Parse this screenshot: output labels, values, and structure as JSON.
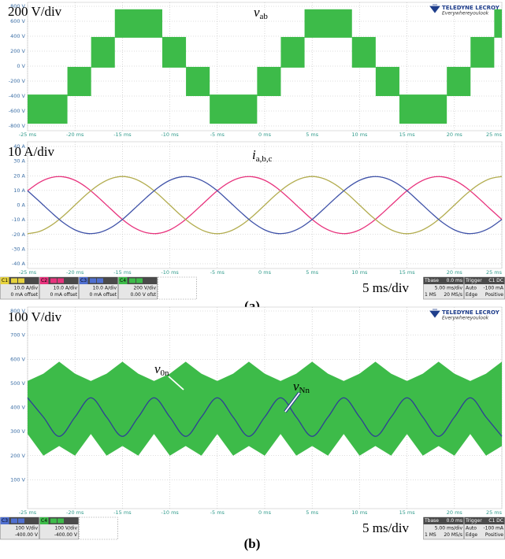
{
  "chart_data": [
    {
      "type": "band",
      "annotations": [
        {
          "text": "200 V/div"
        },
        {
          "text": "v",
          "sub": "ab"
        }
      ],
      "logo": {
        "brand": "TELEDYNE LECROY",
        "tagline": "Everywhereyoulook"
      },
      "xlim": [
        -25,
        25
      ],
      "xticks": [
        {
          "value": -25,
          "label": "-25 ms"
        },
        {
          "value": -20,
          "label": "-20 ms"
        },
        {
          "value": -15,
          "label": "-15 ms"
        },
        {
          "value": -10,
          "label": "-10 ms"
        },
        {
          "value": -5,
          "label": "-5 ms"
        },
        {
          "value": 0,
          "label": "0 ms"
        },
        {
          "value": 5,
          "label": "5 ms"
        },
        {
          "value": 10,
          "label": "10 ms"
        },
        {
          "value": 15,
          "label": "15 ms"
        },
        {
          "value": 20,
          "label": "20 ms"
        },
        {
          "value": 25,
          "label": "25 ms"
        }
      ],
      "ylim": [
        -800,
        800
      ],
      "yticks": [
        {
          "value": 800,
          "label": "800 V"
        },
        {
          "value": 600,
          "label": "600 V"
        },
        {
          "value": 400,
          "label": "400 V"
        },
        {
          "value": 200,
          "label": "200 V"
        },
        {
          "value": 0,
          "label": "0 V"
        },
        {
          "value": -200,
          "label": "-200 V"
        },
        {
          "value": -400,
          "label": "-400 V"
        },
        {
          "value": -600,
          "label": "-600 V"
        },
        {
          "value": -800,
          "label": "-800 V"
        }
      ],
      "grid": true,
      "series": [
        {
          "color": "#3dbb49",
          "x_start": [
            -25,
            -20.8,
            -18.3,
            -15.8,
            -10.8,
            -8.3,
            -5.8,
            -0.8,
            1.7,
            4.2,
            9.2,
            11.7,
            14.2,
            19.2,
            21.7,
            24.2
          ],
          "x_end": [
            -20.8,
            -18.3,
            -15.8,
            -10.8,
            -8.3,
            -5.8,
            -0.8,
            1.7,
            4.2,
            9.2,
            11.7,
            14.2,
            19.2,
            21.7,
            24.2,
            25
          ],
          "low": [
            -770,
            -400,
            -20,
            380,
            -20,
            -400,
            -770,
            -400,
            -20,
            380,
            -20,
            -400,
            -770,
            -400,
            -20,
            380
          ],
          "high": [
            -380,
            -10,
            390,
            760,
            390,
            -10,
            -380,
            -10,
            390,
            760,
            390,
            -10,
            -380,
            -10,
            390,
            760
          ]
        }
      ]
    },
    {
      "type": "line",
      "annotations": [
        {
          "text": "10 A/div"
        },
        {
          "text": "i",
          "sub": "a,b,c"
        }
      ],
      "xlim": [
        -25,
        25
      ],
      "xticks": [
        {
          "value": -25,
          "label": "-25 ms"
        },
        {
          "value": -20,
          "label": "-20 ms"
        },
        {
          "value": -15,
          "label": "-15 ms"
        },
        {
          "value": -10,
          "label": "-10 ms"
        },
        {
          "value": -5,
          "label": "-5 ms"
        },
        {
          "value": 0,
          "label": "0 ms"
        },
        {
          "value": 5,
          "label": "5 ms"
        },
        {
          "value": 10,
          "label": "10 ms"
        },
        {
          "value": 15,
          "label": "15 ms"
        },
        {
          "value": 20,
          "label": "20 ms"
        },
        {
          "value": 25,
          "label": "25 ms"
        }
      ],
      "ylim": [
        -40,
        40
      ],
      "yticks": [
        {
          "value": 40,
          "label": "40 A"
        },
        {
          "value": 30,
          "label": "30 A"
        },
        {
          "value": 20,
          "label": "20 A"
        },
        {
          "value": 10,
          "label": "10 A"
        },
        {
          "value": 0,
          "label": "0 A"
        },
        {
          "value": -10,
          "label": "-10 A"
        },
        {
          "value": -20,
          "label": "-20 A"
        },
        {
          "value": -30,
          "label": "-30 A"
        },
        {
          "value": -40,
          "label": "-40 A"
        }
      ],
      "grid": true,
      "x": [
        -25,
        -23.75,
        -22.5,
        -21.25,
        -20,
        -18.75,
        -17.5,
        -16.25,
        -15,
        -13.75,
        -12.5,
        -11.25,
        -10,
        -8.75,
        -7.5,
        -6.25,
        -5,
        -3.75,
        -2.5,
        -1.25,
        0,
        1.25,
        2.5,
        3.75,
        5,
        6.25,
        7.5,
        8.75,
        10,
        11.25,
        12.5,
        13.75,
        15,
        16.25,
        17.5,
        18.75,
        20,
        21.25,
        22.5,
        23.75,
        25
      ],
      "series": [
        {
          "color": "#e8337d",
          "values": [
            9.8,
            15.5,
            18.8,
            19.3,
            16.9,
            11.9,
            5.0,
            -2.5,
            -9.8,
            -15.5,
            -18.8,
            -19.3,
            -16.9,
            -11.9,
            -5.0,
            2.5,
            9.8,
            15.5,
            18.8,
            19.3,
            16.9,
            11.9,
            5.0,
            -2.5,
            -9.8,
            -15.5,
            -18.8,
            -19.3,
            -16.9,
            -11.9,
            -5.0,
            2.5,
            9.8,
            15.5,
            18.8,
            19.3,
            16.9,
            11.9,
            5.0,
            -2.5,
            -9.8
          ]
        },
        {
          "color": "#b3ad50",
          "values": [
            -19.5,
            -18,
            -13.8,
            -7.5,
            0,
            7.5,
            13.8,
            18,
            19.5,
            18,
            13.8,
            7.5,
            0,
            -7.5,
            -13.8,
            -18,
            -19.5,
            -18,
            -13.8,
            -7.5,
            0,
            7.5,
            13.8,
            18,
            19.5,
            18,
            13.8,
            7.5,
            0,
            -7.5,
            -13.8,
            -18,
            -19.5,
            -18,
            -13.8,
            -7.5,
            0,
            7.5,
            13.8,
            18,
            19.5
          ]
        },
        {
          "color": "#3f52a8",
          "values": [
            9.8,
            2.5,
            -5.0,
            -11.9,
            -16.9,
            -19.3,
            -18.8,
            -15.5,
            -9.8,
            -2.5,
            5.0,
            11.9,
            16.9,
            19.3,
            18.8,
            15.5,
            9.8,
            2.5,
            -5.0,
            -11.9,
            -16.9,
            -19.3,
            -18.8,
            -15.5,
            -9.8,
            -2.5,
            5.0,
            11.9,
            16.9,
            19.3,
            18.8,
            15.5,
            9.8,
            2.5,
            -5.0,
            -11.9,
            -16.9,
            -19.3,
            -18.8,
            -15.5,
            -9.8
          ]
        }
      ],
      "status": [
        {
          "label": "C1",
          "color": "#e6d23c",
          "lines": [
            "10.0 A/div",
            "0 mA offset"
          ]
        },
        {
          "label": "C2",
          "color": "#e8337d",
          "lines": [
            "10.0 A/div",
            "0 mA offset"
          ]
        },
        {
          "label": "C3",
          "color": "#4f6fd0",
          "lines": [
            "10.0 A/div",
            "0 mA offset"
          ]
        },
        {
          "label": "C4",
          "color": "#3dbb49",
          "lines": [
            "200 V/div",
            "0.00 V ofst"
          ]
        }
      ],
      "timebase": {
        "label": "Tbase",
        "head": "0.0 ms",
        "rows": [
          [
            "5.00 ms/div"
          ],
          [
            "1 MS",
            "20 MS/s"
          ]
        ]
      },
      "trigger": {
        "label": "Trigger",
        "head": "C1 DC",
        "rows": [
          [
            "Auto",
            "-100 mA"
          ],
          [
            "Edge",
            "Positive"
          ]
        ]
      },
      "scale_note": "5 ms/div",
      "caption": "(a)"
    },
    {
      "type": "band",
      "annotations": [
        {
          "text": "100 V/div"
        },
        {
          "text": "v",
          "sub": "0n"
        },
        {
          "text": "v",
          "sub": "Nn"
        }
      ],
      "logo": {
        "brand": "TELEDYNE LECROY",
        "tagline": "Everywhereyoulook"
      },
      "xlim": [
        -25,
        25
      ],
      "xticks": [
        {
          "value": -25,
          "label": "-25 ms"
        },
        {
          "value": -20,
          "label": "-20 ms"
        },
        {
          "value": -15,
          "label": "-15 ms"
        },
        {
          "value": -10,
          "label": "-10 ms"
        },
        {
          "value": -5,
          "label": "-5 ms"
        },
        {
          "value": 0,
          "label": "0 ms"
        },
        {
          "value": 5,
          "label": "5 ms"
        },
        {
          "value": 10,
          "label": "10 ms"
        },
        {
          "value": 15,
          "label": "15 ms"
        },
        {
          "value": 20,
          "label": "20 ms"
        },
        {
          "value": 25,
          "label": "25 ms"
        }
      ],
      "ylim": [
        0,
        800
      ],
      "yticks": [
        {
          "value": 800,
          "label": "800 V"
        },
        {
          "value": 700,
          "label": "700 V"
        },
        {
          "value": 600,
          "label": "600 V"
        },
        {
          "value": 500,
          "label": "500 V"
        },
        {
          "value": 400,
          "label": "400 V"
        },
        {
          "value": 300,
          "label": "300 V"
        },
        {
          "value": 200,
          "label": "200 V"
        },
        {
          "value": 100,
          "label": "100 V"
        }
      ],
      "grid": true,
      "x": [
        -25,
        -23.33,
        -21.67,
        -20,
        -18.33,
        -16.67,
        -15,
        -13.33,
        -11.67,
        -10,
        -8.33,
        -6.67,
        -5,
        -3.33,
        -1.67,
        0,
        1.67,
        3.33,
        5,
        6.67,
        8.33,
        10,
        11.67,
        13.33,
        15,
        16.67,
        18.33,
        20,
        21.67,
        23.33,
        25
      ],
      "series": [
        {
          "color": "#3dbb49",
          "high": [
            510,
            540,
            590,
            540,
            510,
            540,
            590,
            540,
            510,
            540,
            590,
            540,
            510,
            540,
            590,
            540,
            510,
            540,
            590,
            540,
            510,
            540,
            590,
            540,
            510,
            540,
            590,
            540,
            510,
            540,
            590
          ],
          "low": [
            290,
            200,
            240,
            200,
            290,
            200,
            240,
            200,
            290,
            200,
            240,
            200,
            290,
            200,
            240,
            200,
            290,
            200,
            240,
            200,
            290,
            200,
            240,
            200,
            290,
            200,
            240,
            200,
            290,
            200,
            240
          ]
        },
        {
          "color": "#2e3f96",
          "values": [
            440,
            360,
            280,
            360,
            440,
            360,
            280,
            360,
            440,
            360,
            280,
            360,
            440,
            360,
            280,
            360,
            440,
            360,
            280,
            360,
            440,
            360,
            280,
            360,
            440,
            360,
            280,
            360,
            440,
            360,
            280
          ]
        }
      ],
      "status": [
        {
          "label": "C3",
          "color": "#4f6fd0",
          "lines": [
            "100 V/div",
            "-400.00 V"
          ]
        },
        {
          "label": "C4",
          "color": "#3dbb49",
          "lines": [
            "100 V/div",
            "-400.00 V"
          ]
        }
      ],
      "timebase": {
        "label": "Tbase",
        "head": "0.0 ms",
        "rows": [
          [
            "5.00 ms/div"
          ],
          [
            "1 MS",
            "20 MS/s"
          ]
        ]
      },
      "trigger": {
        "label": "Trigger",
        "head": "C1 DC",
        "rows": [
          [
            "Auto",
            "-100 mA"
          ],
          [
            "Edge",
            "Positive"
          ]
        ]
      },
      "scale_note": "5 ms/div",
      "caption": "(b)"
    }
  ]
}
